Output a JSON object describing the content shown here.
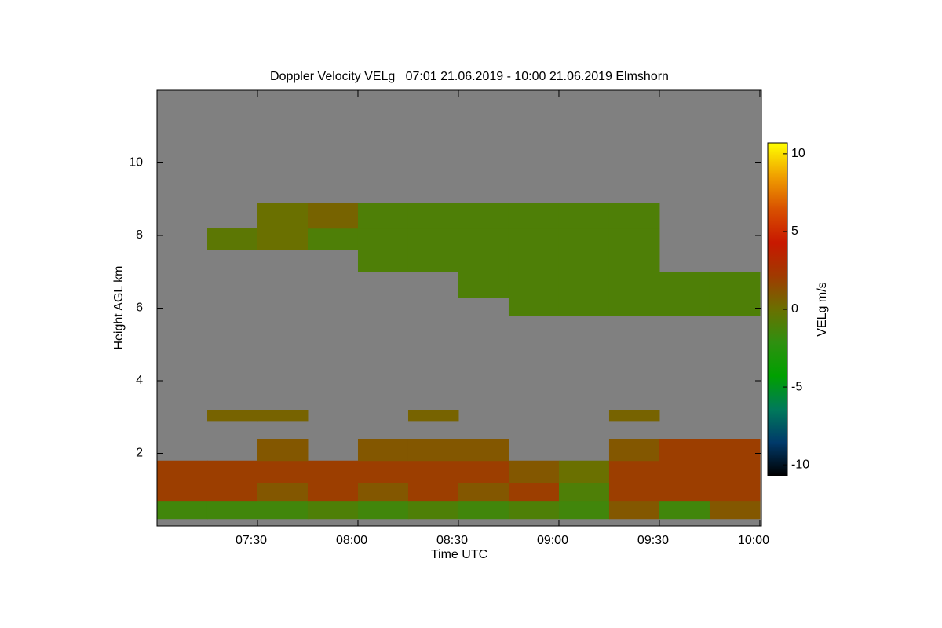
{
  "chart_data": {
    "type": "heatmap",
    "title": "Doppler Velocity VELg   07:01 21.06.2019 - 10:00 21.06.2019 Elmshorn",
    "x_label": "Time UTC",
    "y_label": "Height AGL km",
    "colorbar_label": "VELg m/s",
    "xlim": [
      7.0,
      10.008
    ],
    "xticks": [
      {
        "value": 7.5,
        "label": "07:30"
      },
      {
        "value": 8.0,
        "label": "08:00"
      },
      {
        "value": 8.5,
        "label": "08:30"
      },
      {
        "value": 9.0,
        "label": "09:00"
      },
      {
        "value": 9.5,
        "label": "09:30"
      },
      {
        "value": 10.0,
        "label": "10:00"
      }
    ],
    "ylim": [
      0,
      12
    ],
    "yticks": [
      2,
      4,
      6,
      8,
      10
    ],
    "clim": [
      -10.7,
      10.7
    ],
    "cticks": [
      -10,
      -5,
      0,
      5,
      10
    ],
    "colormap": [
      "#000000",
      "#003a6a",
      "#007a5a",
      "#00a000",
      "#2f9010",
      "#6a7000",
      "#a03a00",
      "#c81800",
      "#d85000",
      "#f0a000",
      "#ffff00"
    ],
    "background": "#808080",
    "x_edges": [
      7.0,
      7.25,
      7.5,
      7.75,
      8.0,
      8.25,
      8.5,
      8.75,
      9.0,
      9.25,
      9.5,
      9.75,
      10.0
    ],
    "y_edges": [
      0.2,
      0.7,
      1.2,
      1.8,
      2.4,
      2.9,
      3.2,
      5.8,
      6.3,
      7.0,
      7.6,
      8.2,
      8.9
    ],
    "z": [
      [
        -1.5,
        -1.5,
        -1.5,
        -1,
        -1.5,
        -1,
        -1.5,
        -1,
        -1.5,
        1,
        -1.5,
        1
      ],
      [
        2,
        2,
        1,
        2,
        1,
        2,
        1,
        2,
        -1,
        2,
        2,
        2
      ],
      [
        2,
        2,
        2,
        2,
        2,
        2,
        2,
        1,
        0,
        2,
        2,
        2
      ],
      [
        null,
        null,
        1,
        null,
        1,
        1,
        1,
        null,
        null,
        1,
        2,
        2
      ],
      [
        null,
        null,
        null,
        null,
        null,
        null,
        null,
        null,
        null,
        null,
        null,
        null
      ],
      [
        null,
        0.5,
        0.5,
        null,
        null,
        0.5,
        null,
        null,
        null,
        0.5,
        null,
        null
      ],
      [
        null,
        null,
        null,
        null,
        null,
        null,
        null,
        null,
        null,
        null,
        null,
        null
      ],
      [
        null,
        null,
        null,
        null,
        null,
        null,
        null,
        -1,
        -1,
        -1,
        -1,
        -1
      ],
      [
        null,
        null,
        null,
        null,
        null,
        null,
        -1,
        -1,
        -1,
        -1,
        -1,
        -1
      ],
      [
        null,
        null,
        null,
        null,
        -1,
        -1,
        -1,
        -1,
        -1,
        -1,
        null,
        null
      ],
      [
        null,
        -0.5,
        0,
        -1,
        -1,
        -1,
        -1,
        -1,
        -1,
        -1,
        null,
        null
      ],
      [
        null,
        null,
        0,
        0.5,
        -1,
        -1,
        -1,
        -1,
        -1,
        -1,
        null,
        null
      ]
    ]
  }
}
